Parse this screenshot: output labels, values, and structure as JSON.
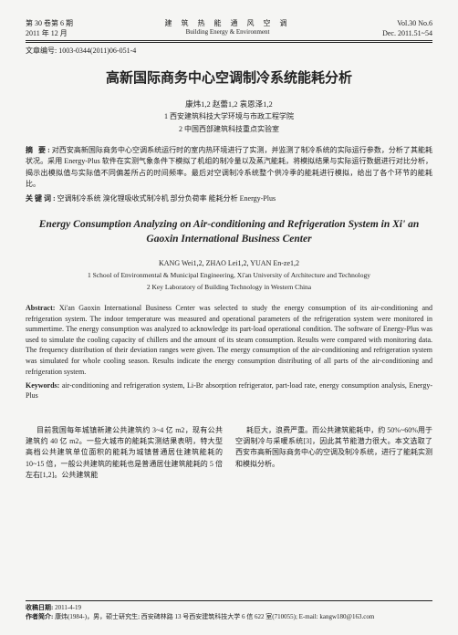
{
  "header": {
    "volume_cn": "第 30 卷第 6 期",
    "date_cn": "2011 年 12 月",
    "journal_cn": "建 筑 热 能 通 风 空 调",
    "journal_en": "Building Energy & Environment",
    "volume_en": "Vol.30 No.6",
    "date_en": "Dec. 2011.51~54"
  },
  "article_id_label": "文章编号:",
  "article_id": "1003-0344(2011)06-051-4",
  "title_cn": "高新国际商务中心空调制冷系统能耗分析",
  "authors_cn": "康炜1,2  赵蕾1,2  袁恩泽1,2",
  "affil_cn_1": "1 西安建筑科技大学环境与市政工程学院",
  "affil_cn_2": "2 中国西部建筑科技重点实验室",
  "abstract_cn_label": "摘  要:",
  "abstract_cn": "对西安高新国际商务中心空调系统运行时的室内热环境进行了实测，并监测了制冷系统的实际运行参数，分析了其能耗状况。采用 Energy-Plus 软件在实测气象条件下模拟了机组的制冷量以及蒸汽能耗，将模拟结果与实际运行数据进行对比分析，揭示出模拟值与实际值不同偏差所占的时间频率。最后对空调制冷系统整个供冷季的能耗进行模拟，给出了各个环节的能耗比。",
  "keywords_cn_label": "关键词:",
  "keywords_cn": "空调制冷系统  溴化锂吸收式制冷机  部分负荷率  能耗分析  Energy-Plus",
  "title_en": "Energy Consumption Analyzing on Air-conditioning and Refrigeration System in Xi' an Gaoxin International Business Center",
  "authors_en": "KANG Wei1,2, ZHAO Lei1,2, YUAN En-ze1,2",
  "affil_en_1": "1 School of Environmental & Municipal Engineering, Xi'an University of Architecture and Technology",
  "affil_en_2": "2 Key Laboratory of Building Technology in Western China",
  "abstract_en_label": "Abstract:",
  "abstract_en": " Xi'an Gaoxin International Business Center was selected to study the energy consumption of its air-conditioning and refrigeration system. The indoor temperature was measured and operational parameters of the refrigeration system were monitored in summertime. The energy consumption was analyzed to acknowledge its part-load operational condition. The software of Energy-Plus was used to simulate the cooling capacity of chillers and the amount of its steam consumption. Results were compared with monitoring data. The frequency distribution of their deviation ranges were given. The energy consumption of the air-conditioning and refrigeration system was simulated for whole cooling season. Results indicate the energy consumption distributing of all parts of the air-conditioning and refrigeration system.",
  "keywords_en_label": "Keywords:",
  "keywords_en": " air-conditioning and refrigeration system, Li-Br absorption refrigerator, part-load rate, energy consumption analysis, Energy-Plus",
  "body_col1": "目前我国每年城镇新建公共建筑约 3~4 亿 m2，现有公共建筑约 40 亿 m2。一些大城市的能耗实测结果表明，特大型高档公共建筑单位面积的能耗为城镇普通居住建筑能耗的 10~15 倍，一般公共建筑的能耗也是普通居住建筑能耗的 5 倍左右[1,2]。公共建筑能",
  "body_col2": "耗巨大，浪费严重。而公共建筑能耗中，约 50%~60%用于空调制冷与采暖系统[3]，因此其节能潜力很大。本文选取了西安市高新国际商务中心的空调及制冷系统，进行了能耗实测和模拟分析。",
  "footer": {
    "recv_label": "收稿日期:",
    "recv": " 2011-4-19",
    "author_label": "作者简介:",
    "author": " 康炜(1984-)，男，硕士研究生; 西安碑林路 13 号西安建筑科技大学 6 信 622 室(710055); E-mail: kangw180@163.com"
  }
}
